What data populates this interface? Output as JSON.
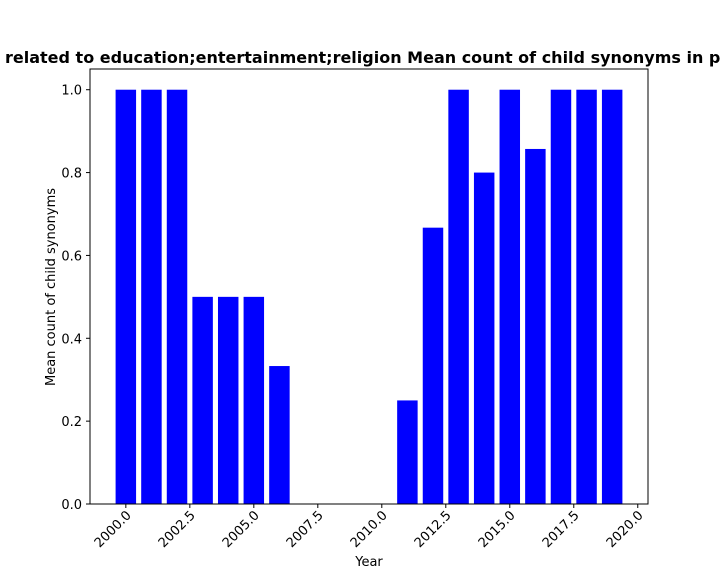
{
  "chart_data": {
    "type": "bar",
    "title": "related to education;entertainment;religion Mean count of child synonyms in p",
    "xlabel": "Year",
    "ylabel": "Mean count of child synonyms",
    "x": [
      2000,
      2001,
      2002,
      2003,
      2004,
      2005,
      2006,
      2011,
      2012,
      2013,
      2014,
      2015,
      2016,
      2017,
      2018,
      2019
    ],
    "values": [
      1.0,
      1.0,
      1.0,
      0.5,
      0.5,
      0.5,
      0.333,
      0.25,
      0.667,
      1.0,
      0.8,
      1.0,
      0.857,
      1.0,
      1.0,
      1.0
    ],
    "xlim": [
      1998.6,
      2020.4
    ],
    "ylim": [
      0,
      1.05
    ],
    "xticks": [
      "2000.0",
      "2002.5",
      "2005.0",
      "2007.5",
      "2010.0",
      "2012.5",
      "2015.0",
      "2017.5",
      "2020.0"
    ],
    "yticks": [
      "0.0",
      "0.2",
      "0.4",
      "0.6",
      "0.8",
      "1.0"
    ],
    "bar_color": "#0000ff",
    "grid": false,
    "legend": false
  }
}
